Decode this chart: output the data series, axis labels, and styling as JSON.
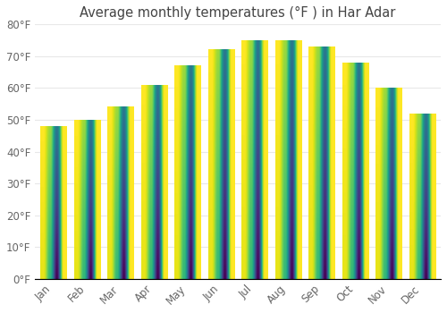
{
  "title": "Average monthly temperatures (°F ) in Har Adar",
  "months": [
    "Jan",
    "Feb",
    "Mar",
    "Apr",
    "May",
    "Jun",
    "Jul",
    "Aug",
    "Sep",
    "Oct",
    "Nov",
    "Dec"
  ],
  "values": [
    48,
    50,
    54,
    61,
    67,
    72,
    75,
    75,
    73,
    68,
    60,
    52
  ],
  "bar_color_bottom": "#F5A800",
  "bar_color_top": "#FFD966",
  "ylim": [
    0,
    80
  ],
  "yticks": [
    0,
    10,
    20,
    30,
    40,
    50,
    60,
    70,
    80
  ],
  "ytick_labels": [
    "0°F",
    "10°F",
    "20°F",
    "30°F",
    "40°F",
    "50°F",
    "60°F",
    "70°F",
    "80°F"
  ],
  "background_color": "#ffffff",
  "grid_color": "#e8e8e8",
  "title_fontsize": 10.5,
  "tick_fontsize": 8.5,
  "tick_font_color": "#666666",
  "title_font_color": "#444444",
  "bar_width": 0.78
}
